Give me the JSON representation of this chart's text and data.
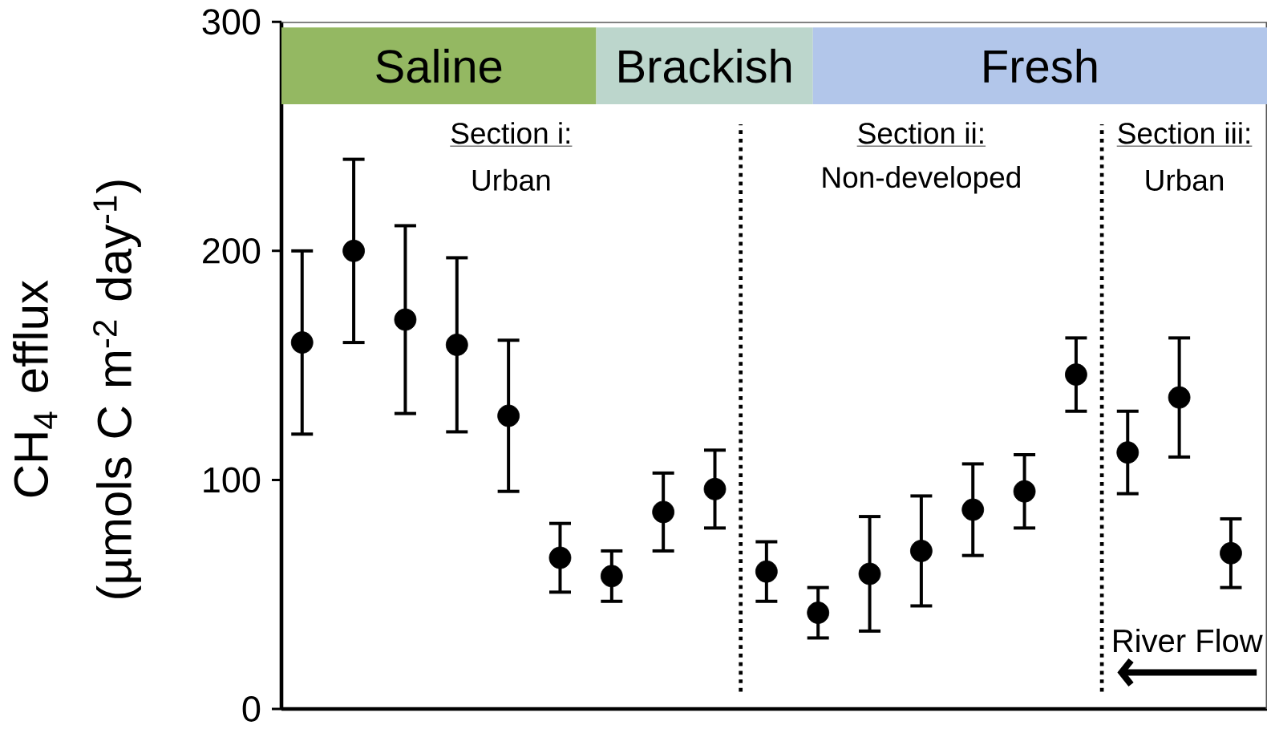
{
  "chart_data": {
    "type": "scatter",
    "ylabel": "CH$_{4}$ efflux\n(µmols C m$^{-2}$ day$^{-1}$)",
    "annotations": [
      "Saline",
      "Brackish",
      "Fresh",
      "Section i:",
      "Urban",
      "Section ii:",
      "Non-developed",
      "Section iii:",
      "Urban",
      "River Flow"
    ],
    "categories": [
      null,
      null,
      null,
      null,
      null,
      null,
      null,
      null,
      null,
      null,
      null,
      null,
      null,
      null,
      null,
      null,
      null,
      null,
      null
    ],
    "series": [
      {
        "color": "#000000",
        "values": [
          160,
          200,
          170,
          159,
          128,
          66,
          58,
          86,
          96,
          60,
          42,
          59,
          69,
          87,
          95,
          146,
          112,
          136,
          68
        ],
        "errors": [
          40,
          40,
          41,
          38,
          33,
          15,
          11,
          17,
          17,
          13,
          11,
          25,
          24,
          20,
          16,
          16,
          18,
          26,
          15
        ]
      }
    ],
    "ylim": [
      0,
      300
    ],
    "yticks": [
      0,
      100,
      200,
      300
    ]
  }
}
